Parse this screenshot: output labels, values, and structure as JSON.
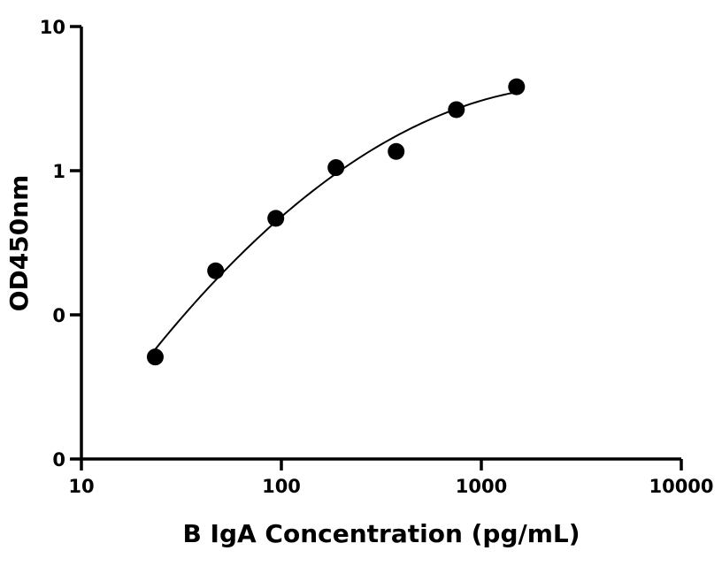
{
  "chart_data": {
    "type": "scatter",
    "title": "",
    "xlabel": "B IgA Concentration (pg/mL)",
    "ylabel": "OD450nm",
    "x_scale": "log",
    "y_scale": "log",
    "xlim": [
      10,
      10000
    ],
    "ylim": [
      0.01,
      10
    ],
    "x_ticks": [
      10,
      100,
      1000,
      10000
    ],
    "x_tick_labels": [
      "10",
      "100",
      "1000",
      "10000"
    ],
    "y_ticks": [
      0.01,
      0.1,
      1,
      10
    ],
    "y_tick_labels": [
      "0",
      "0",
      "1",
      "10"
    ],
    "grid": false,
    "legend": "none",
    "marker_color": "#000000",
    "fit_line": true,
    "series": [
      {
        "x": [
          23.4,
          46.9,
          93.8,
          187.5,
          375,
          750,
          1500
        ],
        "y": [
          0.051,
          0.202,
          0.467,
          1.05,
          1.36,
          2.65,
          3.82
        ]
      }
    ]
  }
}
